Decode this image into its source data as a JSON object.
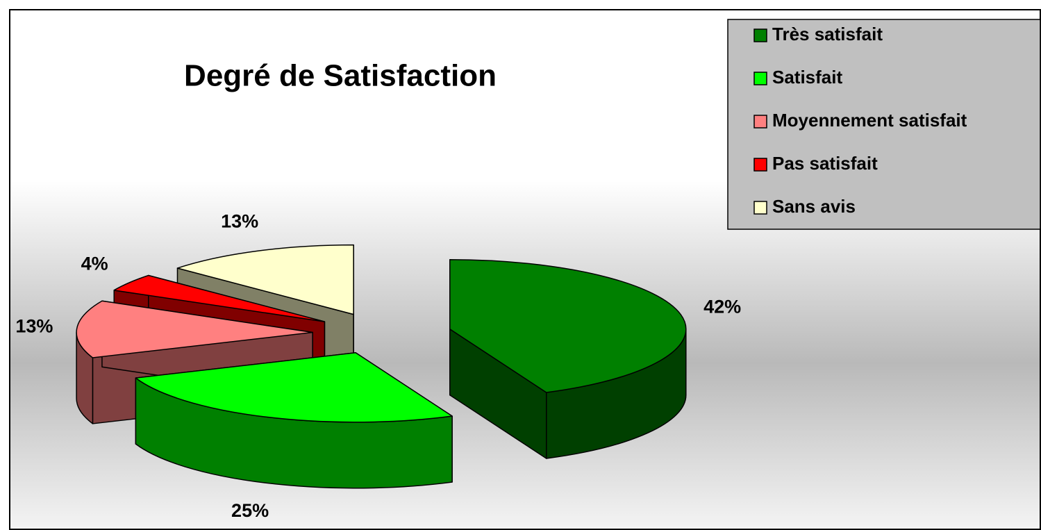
{
  "chart_data": {
    "type": "pie3d",
    "title": "Degré de Satisfaction",
    "categories": [
      "Très satisfait",
      "Satisfait",
      "Moyennement satisfait",
      "Pas satisfait",
      "Sans avis"
    ],
    "values": [
      42,
      25,
      13,
      4,
      13
    ],
    "value_labels": [
      "42%",
      "25%",
      "13%",
      "4%",
      "13%"
    ],
    "colors": [
      "#008000",
      "#00ff00",
      "#ff8080",
      "#ff0000",
      "#ffffcc"
    ],
    "legend": "top-right"
  }
}
